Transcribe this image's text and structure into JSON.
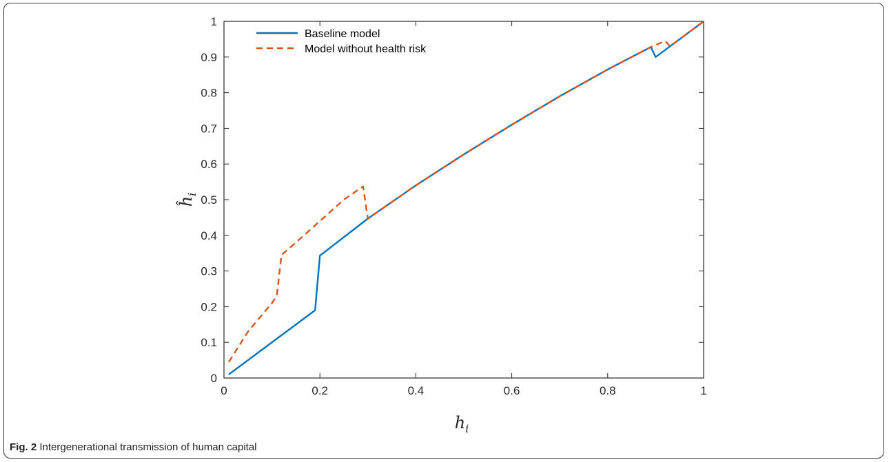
{
  "caption": {
    "label": "Fig. 2",
    "text": "Intergenerational transmission of human capital"
  },
  "chart_data": {
    "type": "line",
    "title": "",
    "xlabel": "h_i",
    "ylabel": "ĥ_i",
    "xlabel_main": "h",
    "xlabel_sub": "i",
    "ylabel_main": "ĥ",
    "ylabel_sub": "i",
    "xlim": [
      0,
      1
    ],
    "ylim": [
      0,
      1
    ],
    "xticks": [
      0,
      0.2,
      0.4,
      0.6,
      0.8,
      1
    ],
    "xtick_labels": [
      "0",
      "0.2",
      "0.4",
      "0.6",
      "0.8",
      "1"
    ],
    "yticks": [
      0,
      0.1,
      0.2,
      0.3,
      0.4,
      0.5,
      0.6,
      0.7,
      0.8,
      0.9,
      1
    ],
    "ytick_labels": [
      "0",
      "0.1",
      "0.2",
      "0.3",
      "0.4",
      "0.5",
      "0.6",
      "0.7",
      "0.8",
      "0.9",
      "1"
    ],
    "grid": false,
    "legend_position": "top-left",
    "series": [
      {
        "name": "Baseline model",
        "style": "solid",
        "color": "#0072BD",
        "x": [
          0.01,
          0.19,
          0.2,
          0.3,
          0.4,
          0.5,
          0.6,
          0.7,
          0.8,
          0.89,
          0.9,
          0.93,
          1.0
        ],
        "y": [
          0.01,
          0.19,
          0.343,
          0.447,
          0.54,
          0.627,
          0.71,
          0.79,
          0.865,
          0.928,
          0.9,
          0.93,
          1.0
        ]
      },
      {
        "name": "Model without health risk",
        "style": "dashed",
        "color": "#D95319",
        "x": [
          0.01,
          0.05,
          0.1,
          0.11,
          0.12,
          0.15,
          0.2,
          0.25,
          0.29,
          0.3,
          0.4,
          0.5,
          0.6,
          0.7,
          0.8,
          0.89,
          0.92,
          0.93,
          1.0
        ],
        "y": [
          0.045,
          0.13,
          0.21,
          0.23,
          0.345,
          0.38,
          0.44,
          0.5,
          0.537,
          0.447,
          0.54,
          0.627,
          0.71,
          0.79,
          0.865,
          0.928,
          0.945,
          0.93,
          1.0
        ]
      }
    ]
  }
}
